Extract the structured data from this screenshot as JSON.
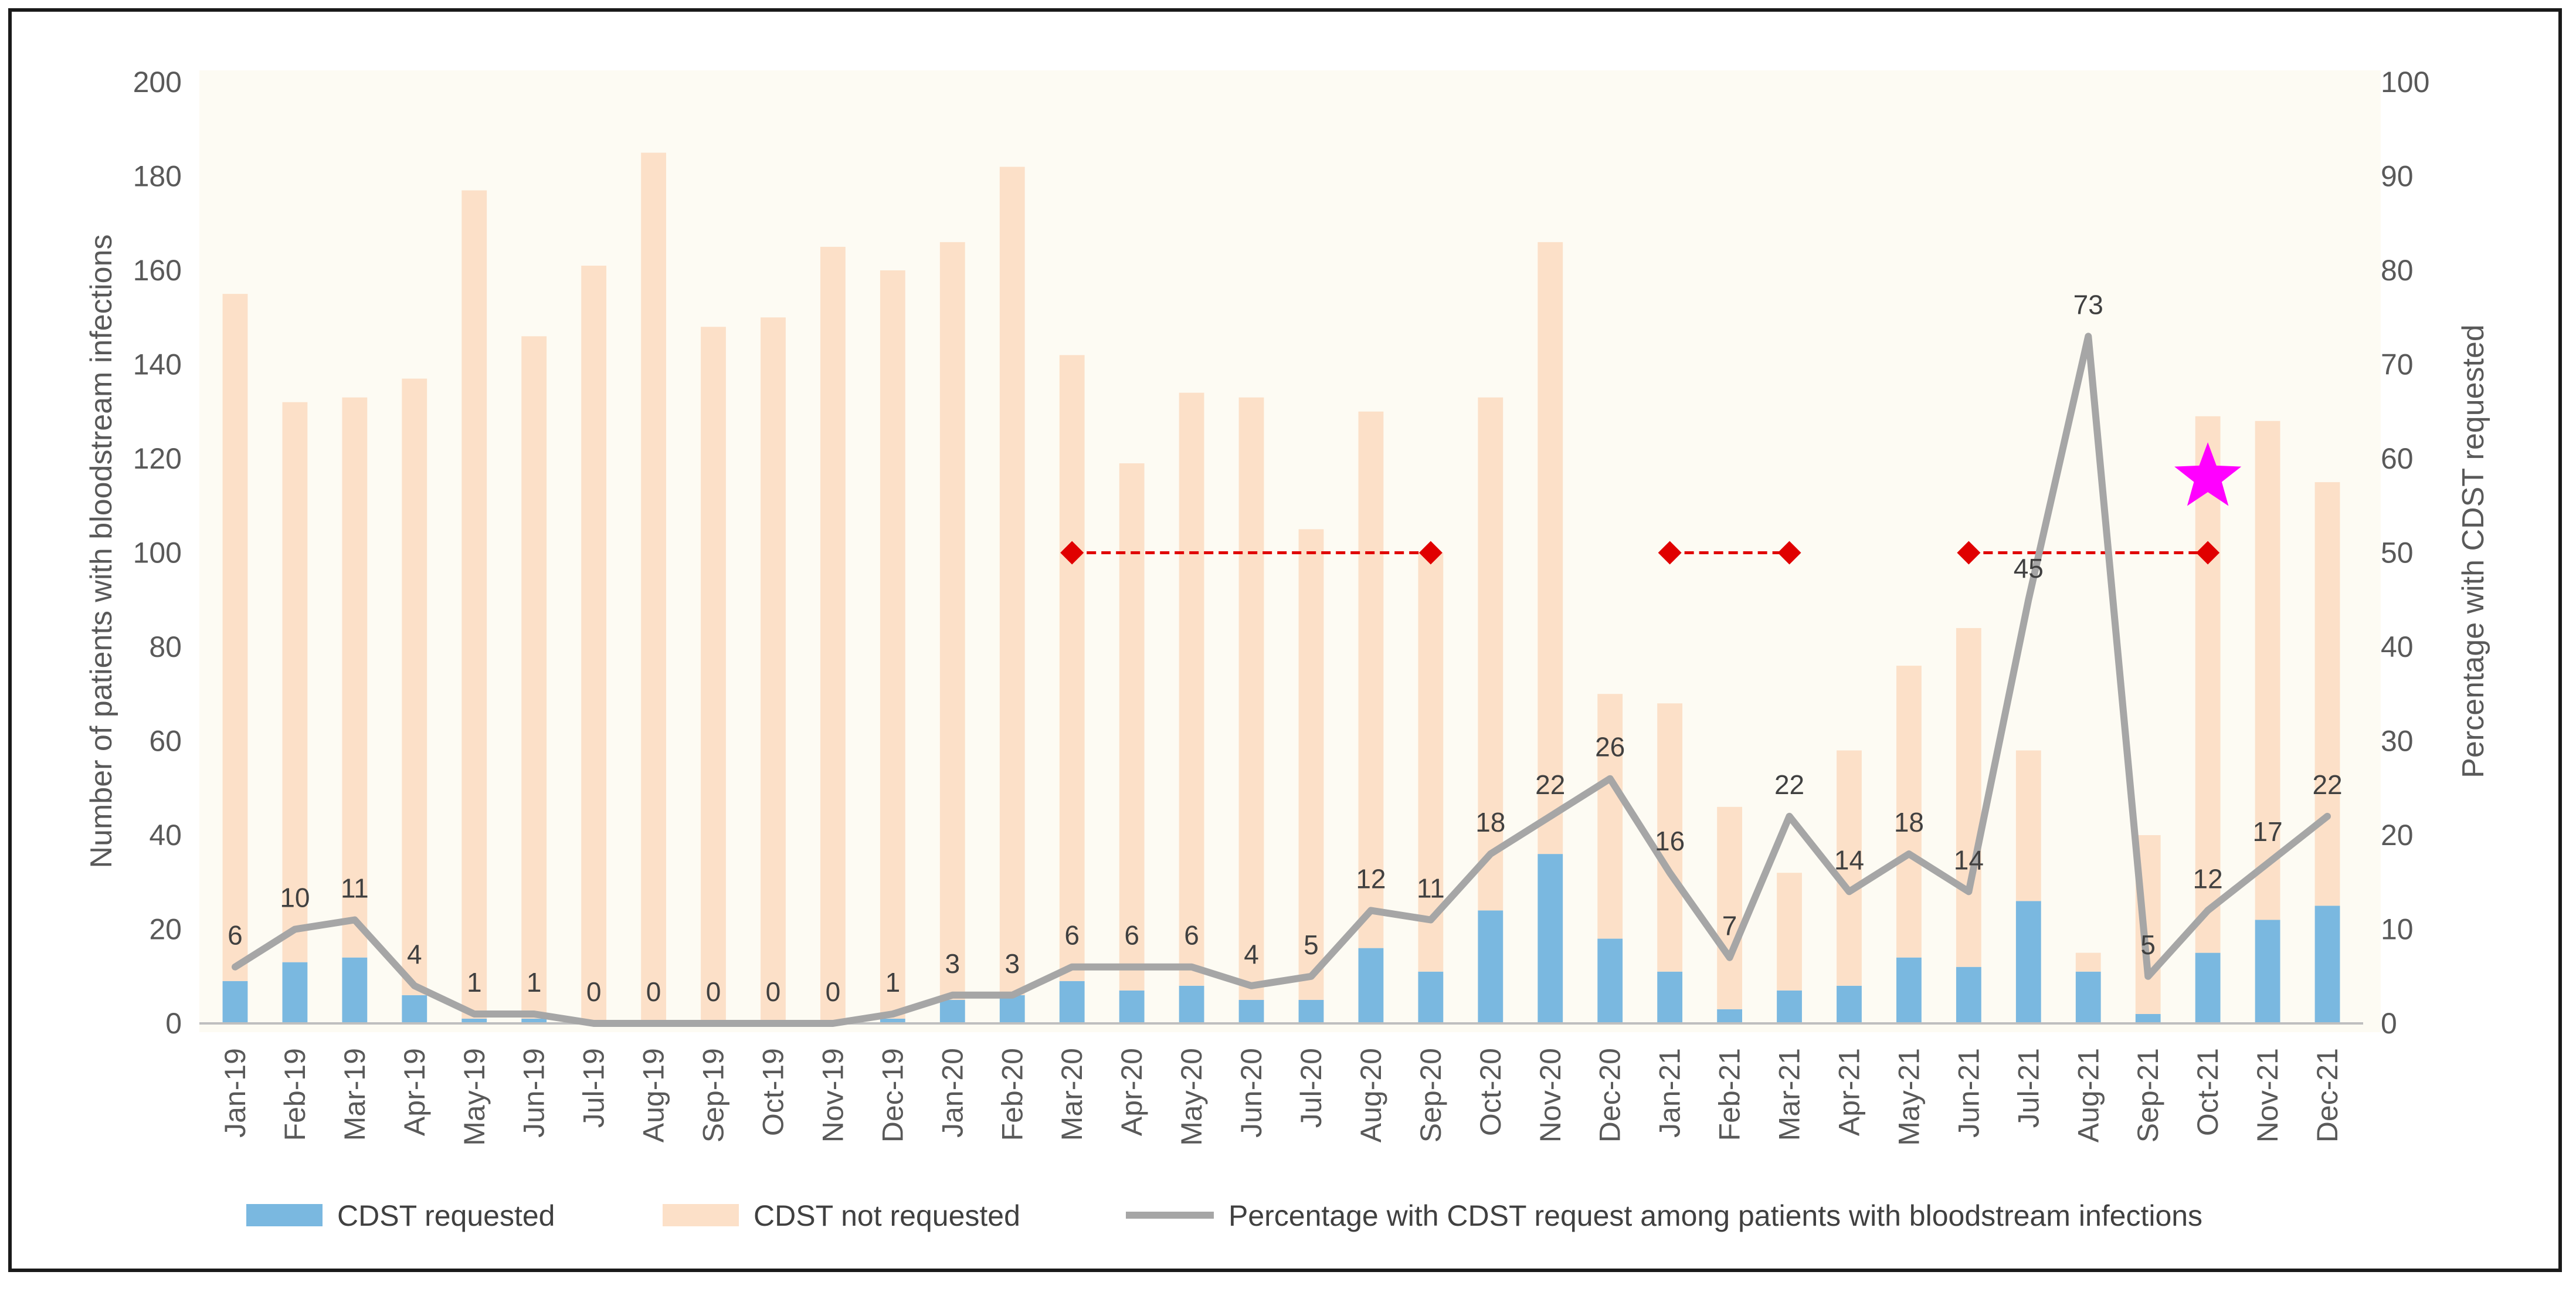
{
  "chart_data": {
    "type": "bar",
    "stacked": true,
    "categories": [
      "Jan-19",
      "Feb-19",
      "Mar-19",
      "Apr-19",
      "May-19",
      "Jun-19",
      "Jul-19",
      "Aug-19",
      "Sep-19",
      "Oct-19",
      "Nov-19",
      "Dec-19",
      "Jan-20",
      "Feb-20",
      "Mar-20",
      "Apr-20",
      "May-20",
      "Jun-20",
      "Jul-20",
      "Aug-20",
      "Sep-20",
      "Oct-20",
      "Nov-20",
      "Dec-20",
      "Jan-21",
      "Feb-21",
      "Mar-21",
      "Apr-21",
      "May-21",
      "Jun-21",
      "Jul-21",
      "Aug-21",
      "Sep-21",
      "Oct-21",
      "Nov-21",
      "Dec-21"
    ],
    "series": [
      {
        "name": "CDST requested",
        "type": "bar",
        "axis": "left",
        "color": "#7ab8e0",
        "values": [
          9,
          13,
          14,
          6,
          1,
          1,
          0,
          0,
          0,
          0,
          0,
          1,
          5,
          6,
          9,
          7,
          8,
          5,
          5,
          16,
          11,
          24,
          36,
          18,
          11,
          3,
          7,
          8,
          14,
          12,
          26,
          11,
          2,
          15,
          22,
          25
        ]
      },
      {
        "name": "CDST not requested",
        "type": "bar",
        "axis": "left",
        "color": "#fce0c8",
        "values": [
          146,
          119,
          119,
          131,
          176,
          145,
          161,
          185,
          148,
          150,
          165,
          159,
          161,
          176,
          133,
          112,
          126,
          128,
          100,
          114,
          89,
          109,
          130,
          52,
          57,
          43,
          25,
          50,
          62,
          72,
          32,
          4,
          38,
          114,
          106,
          90
        ]
      },
      {
        "name": "Percentage with CDST request among patients with bloodstream infections",
        "type": "line",
        "axis": "right",
        "color": "#a6a6a6",
        "values": [
          6,
          10,
          11,
          4,
          1,
          1,
          0,
          0,
          0,
          0,
          0,
          1,
          3,
          3,
          6,
          6,
          6,
          4,
          5,
          12,
          11,
          18,
          22,
          26,
          16,
          7,
          22,
          14,
          18,
          14,
          45,
          73,
          5,
          12,
          17,
          22
        ]
      }
    ],
    "data_labels": [
      "6",
      "10",
      "11",
      "4",
      "1",
      "1",
      "0",
      "0",
      "0",
      "0",
      "0",
      "1",
      "3",
      "3",
      "6",
      "6",
      "6",
      "4",
      "5",
      "12",
      "11",
      "18",
      "22",
      "26",
      "16",
      "7",
      "22",
      "14",
      "18",
      "14",
      "45",
      "73",
      "5",
      "12",
      "17",
      "22"
    ],
    "y_left": {
      "label": "Number of patients with bloodstream infections",
      "ylim": [
        0,
        200
      ],
      "ticks": [
        "0",
        "20",
        "40",
        "60",
        "80",
        "100",
        "120",
        "140",
        "160",
        "180",
        "200"
      ]
    },
    "y_right": {
      "label": "Percentage with CDST requested",
      "ylim": [
        0,
        100
      ],
      "ticks": [
        "0",
        "10",
        "20",
        "30",
        "40",
        "50",
        "60",
        "70",
        "80",
        "90",
        "100"
      ]
    },
    "annotations": {
      "periods": [
        {
          "start": "Mar-20",
          "end": "Sep-20",
          "y": 100,
          "color": "#e00000"
        },
        {
          "start": "Jan-21",
          "end": "Mar-21",
          "y": 100,
          "color": "#e00000"
        },
        {
          "start": "Jun-21",
          "end": "Oct-21",
          "y": 100,
          "color": "#e00000"
        }
      ],
      "star": {
        "category": "Oct-21",
        "y": 116,
        "color": "#ff00ff"
      }
    },
    "legend": {
      "position": "bottom",
      "entries": [
        "CDST requested",
        "CDST not requested",
        "Percentage with CDST request among patients with bloodstream infections"
      ]
    }
  }
}
